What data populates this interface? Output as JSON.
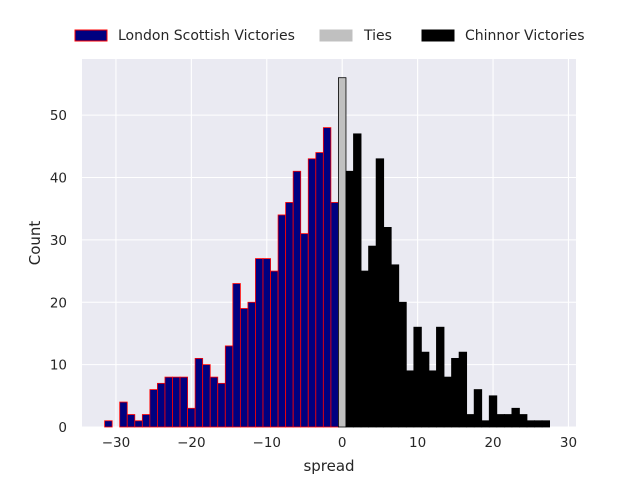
{
  "chart_data": {
    "type": "bar",
    "xlabel": "spread",
    "ylabel": "Count",
    "xlim": [
      -34.5,
      31
    ],
    "ylim": [
      0,
      59
    ],
    "xticks": [
      -30,
      -20,
      -10,
      0,
      10,
      20,
      30
    ],
    "xtick_labels": [
      "−30",
      "−20",
      "−10",
      "0",
      "10",
      "20",
      "30"
    ],
    "yticks": [
      0,
      10,
      20,
      30,
      40,
      50
    ],
    "ytick_labels": [
      "0",
      "10",
      "20",
      "30",
      "40",
      "50"
    ],
    "grid": true,
    "legend_position": "top, outside plot, single row",
    "series": [
      {
        "name": "London Scottish Victories",
        "color": "#000080",
        "edgecolor": "#ff0000",
        "x": [
          -31,
          -29,
          -28,
          -27,
          -26,
          -25,
          -24,
          -23,
          -22,
          -21,
          -20,
          -19,
          -18,
          -17,
          -16,
          -15,
          -14,
          -13,
          -12,
          -11,
          -10,
          -9,
          -8,
          -7,
          -6,
          -5,
          -4,
          -3,
          -2,
          -1
        ],
        "values": [
          1,
          4,
          2,
          1,
          2,
          6,
          7,
          8,
          8,
          8,
          3,
          11,
          10,
          8,
          7,
          13,
          23,
          19,
          20,
          27,
          27,
          25,
          34,
          36,
          41,
          31,
          43,
          44,
          48,
          36
        ]
      },
      {
        "name": "Ties",
        "color": "#c0c0c0",
        "edgecolor": "#000000",
        "x": [
          0
        ],
        "values": [
          56
        ]
      },
      {
        "name": "Chinnor Victories",
        "color": "#000000",
        "edgecolor": "#000000",
        "x": [
          1,
          2,
          3,
          4,
          5,
          6,
          7,
          8,
          9,
          10,
          11,
          12,
          13,
          14,
          15,
          16,
          17,
          18,
          19,
          20,
          21,
          22,
          23,
          24,
          25,
          26,
          27,
          28
        ],
        "values": [
          41,
          47,
          25,
          29,
          43,
          32,
          26,
          20,
          9,
          16,
          12,
          9,
          16,
          8,
          11,
          12,
          2,
          6,
          1,
          5,
          2,
          2,
          3,
          2,
          1,
          1,
          1,
          0
        ]
      }
    ]
  }
}
